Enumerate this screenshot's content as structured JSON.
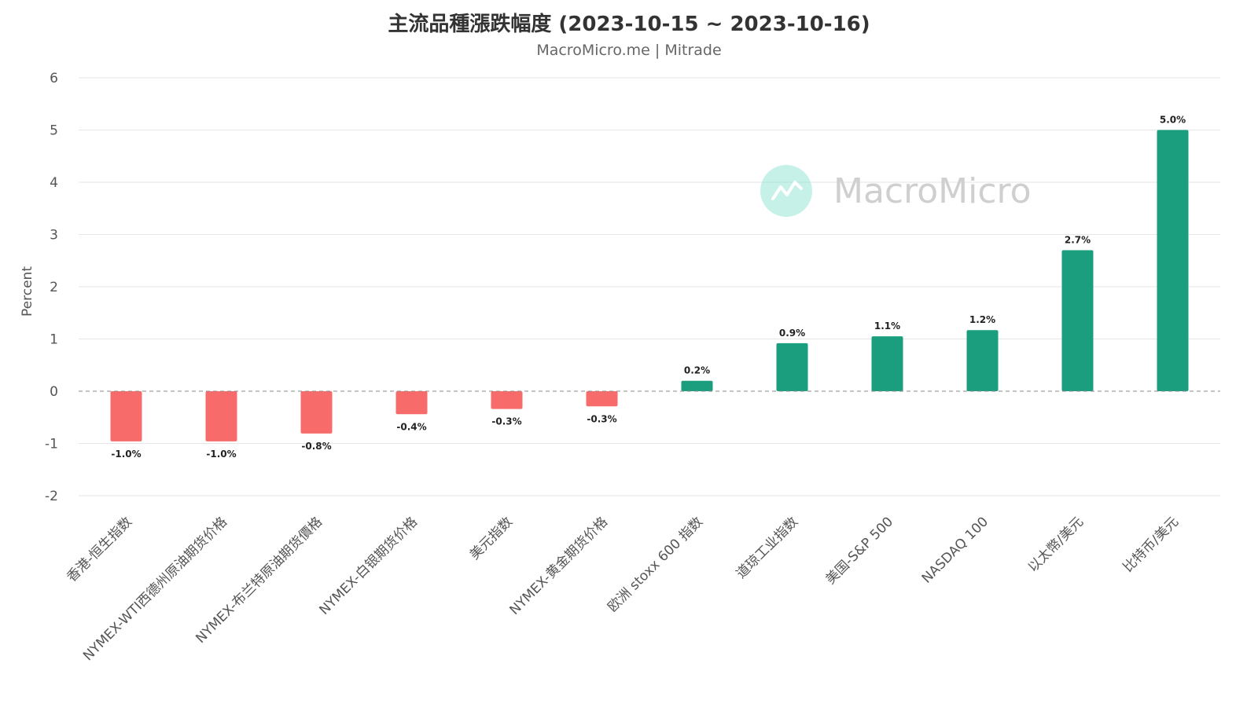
{
  "chart_data": {
    "type": "bar",
    "title": "主流品種漲跌幅度 (2023-10-15 ~ 2023-10-16)",
    "subtitle": "MacroMicro.me | Mitrade",
    "ylabel": "Percent",
    "xlabel": "",
    "ylim": [
      -2,
      6
    ],
    "yticks": [
      -2,
      -1,
      0,
      1,
      2,
      3,
      4,
      5,
      6
    ],
    "grid": true,
    "categories": [
      "香港-恒生指数",
      "NYMEX-WTI西德州原油期货价格",
      "NYMEX-布兰特原油期货價格",
      "NYMEX-白银期货价格",
      "美元指数",
      "NYMEX-黄金期货价格",
      "欧洲 stoxx 600 指数",
      "道琼工业指数",
      "美国-S&P 500",
      "NASDAQ 100",
      "以太幣/美元",
      "比特币/美元"
    ],
    "values": [
      -0.96,
      -0.96,
      -0.81,
      -0.44,
      -0.34,
      -0.29,
      0.2,
      0.92,
      1.05,
      1.17,
      2.7,
      5.0
    ],
    "data_labels": [
      "-1.0%",
      "-1.0%",
      "-0.8%",
      "-0.4%",
      "-0.3%",
      "-0.3%",
      "0.2%",
      "0.9%",
      "1.1%",
      "1.2%",
      "2.7%",
      "5.0%"
    ],
    "colors": {
      "positive": "#1a9e7e",
      "negative": "#f76b6b",
      "grid": "#e6e6e6",
      "zero_line": "#888888"
    }
  },
  "watermark": {
    "text": "MacroMicro",
    "icon": "macromicro-logo-icon",
    "color": "#7ee0cf"
  }
}
